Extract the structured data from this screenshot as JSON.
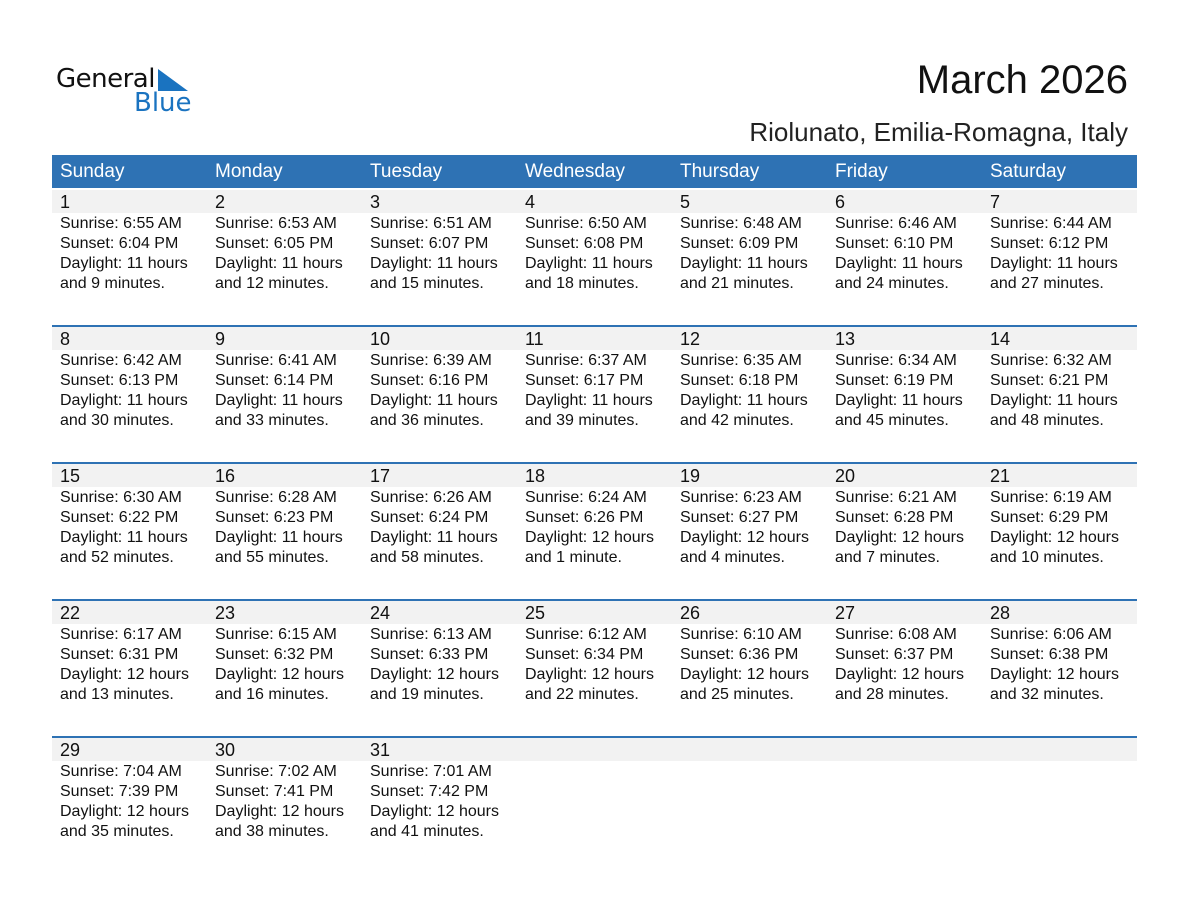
{
  "logo": {
    "word1": "General",
    "word2": "Blue"
  },
  "title": "March 2026",
  "location": "Riolunato, Emilia-Romagna, Italy",
  "colors": {
    "header": "#2e72b4",
    "day_band": "#f2f2f2",
    "logo_blue": "#1a73c0"
  },
  "weekdays": [
    "Sunday",
    "Monday",
    "Tuesday",
    "Wednesday",
    "Thursday",
    "Friday",
    "Saturday"
  ],
  "weeks": [
    [
      {
        "day": "1",
        "sunrise": "Sunrise: 6:55 AM",
        "sunset": "Sunset: 6:04 PM",
        "daylight": "Daylight: 11 hours",
        "minutes": "and 9 minutes."
      },
      {
        "day": "2",
        "sunrise": "Sunrise: 6:53 AM",
        "sunset": "Sunset: 6:05 PM",
        "daylight": "Daylight: 11 hours",
        "minutes": "and 12 minutes."
      },
      {
        "day": "3",
        "sunrise": "Sunrise: 6:51 AM",
        "sunset": "Sunset: 6:07 PM",
        "daylight": "Daylight: 11 hours",
        "minutes": "and 15 minutes."
      },
      {
        "day": "4",
        "sunrise": "Sunrise: 6:50 AM",
        "sunset": "Sunset: 6:08 PM",
        "daylight": "Daylight: 11 hours",
        "minutes": "and 18 minutes."
      },
      {
        "day": "5",
        "sunrise": "Sunrise: 6:48 AM",
        "sunset": "Sunset: 6:09 PM",
        "daylight": "Daylight: 11 hours",
        "minutes": "and 21 minutes."
      },
      {
        "day": "6",
        "sunrise": "Sunrise: 6:46 AM",
        "sunset": "Sunset: 6:10 PM",
        "daylight": "Daylight: 11 hours",
        "minutes": "and 24 minutes."
      },
      {
        "day": "7",
        "sunrise": "Sunrise: 6:44 AM",
        "sunset": "Sunset: 6:12 PM",
        "daylight": "Daylight: 11 hours",
        "minutes": "and 27 minutes."
      }
    ],
    [
      {
        "day": "8",
        "sunrise": "Sunrise: 6:42 AM",
        "sunset": "Sunset: 6:13 PM",
        "daylight": "Daylight: 11 hours",
        "minutes": "and 30 minutes."
      },
      {
        "day": "9",
        "sunrise": "Sunrise: 6:41 AM",
        "sunset": "Sunset: 6:14 PM",
        "daylight": "Daylight: 11 hours",
        "minutes": "and 33 minutes."
      },
      {
        "day": "10",
        "sunrise": "Sunrise: 6:39 AM",
        "sunset": "Sunset: 6:16 PM",
        "daylight": "Daylight: 11 hours",
        "minutes": "and 36 minutes."
      },
      {
        "day": "11",
        "sunrise": "Sunrise: 6:37 AM",
        "sunset": "Sunset: 6:17 PM",
        "daylight": "Daylight: 11 hours",
        "minutes": "and 39 minutes."
      },
      {
        "day": "12",
        "sunrise": "Sunrise: 6:35 AM",
        "sunset": "Sunset: 6:18 PM",
        "daylight": "Daylight: 11 hours",
        "minutes": "and 42 minutes."
      },
      {
        "day": "13",
        "sunrise": "Sunrise: 6:34 AM",
        "sunset": "Sunset: 6:19 PM",
        "daylight": "Daylight: 11 hours",
        "minutes": "and 45 minutes."
      },
      {
        "day": "14",
        "sunrise": "Sunrise: 6:32 AM",
        "sunset": "Sunset: 6:21 PM",
        "daylight": "Daylight: 11 hours",
        "minutes": "and 48 minutes."
      }
    ],
    [
      {
        "day": "15",
        "sunrise": "Sunrise: 6:30 AM",
        "sunset": "Sunset: 6:22 PM",
        "daylight": "Daylight: 11 hours",
        "minutes": "and 52 minutes."
      },
      {
        "day": "16",
        "sunrise": "Sunrise: 6:28 AM",
        "sunset": "Sunset: 6:23 PM",
        "daylight": "Daylight: 11 hours",
        "minutes": "and 55 minutes."
      },
      {
        "day": "17",
        "sunrise": "Sunrise: 6:26 AM",
        "sunset": "Sunset: 6:24 PM",
        "daylight": "Daylight: 11 hours",
        "minutes": "and 58 minutes."
      },
      {
        "day": "18",
        "sunrise": "Sunrise: 6:24 AM",
        "sunset": "Sunset: 6:26 PM",
        "daylight": "Daylight: 12 hours",
        "minutes": "and 1 minute."
      },
      {
        "day": "19",
        "sunrise": "Sunrise: 6:23 AM",
        "sunset": "Sunset: 6:27 PM",
        "daylight": "Daylight: 12 hours",
        "minutes": "and 4 minutes."
      },
      {
        "day": "20",
        "sunrise": "Sunrise: 6:21 AM",
        "sunset": "Sunset: 6:28 PM",
        "daylight": "Daylight: 12 hours",
        "minutes": "and 7 minutes."
      },
      {
        "day": "21",
        "sunrise": "Sunrise: 6:19 AM",
        "sunset": "Sunset: 6:29 PM",
        "daylight": "Daylight: 12 hours",
        "minutes": "and 10 minutes."
      }
    ],
    [
      {
        "day": "22",
        "sunrise": "Sunrise: 6:17 AM",
        "sunset": "Sunset: 6:31 PM",
        "daylight": "Daylight: 12 hours",
        "minutes": "and 13 minutes."
      },
      {
        "day": "23",
        "sunrise": "Sunrise: 6:15 AM",
        "sunset": "Sunset: 6:32 PM",
        "daylight": "Daylight: 12 hours",
        "minutes": "and 16 minutes."
      },
      {
        "day": "24",
        "sunrise": "Sunrise: 6:13 AM",
        "sunset": "Sunset: 6:33 PM",
        "daylight": "Daylight: 12 hours",
        "minutes": "and 19 minutes."
      },
      {
        "day": "25",
        "sunrise": "Sunrise: 6:12 AM",
        "sunset": "Sunset: 6:34 PM",
        "daylight": "Daylight: 12 hours",
        "minutes": "and 22 minutes."
      },
      {
        "day": "26",
        "sunrise": "Sunrise: 6:10 AM",
        "sunset": "Sunset: 6:36 PM",
        "daylight": "Daylight: 12 hours",
        "minutes": "and 25 minutes."
      },
      {
        "day": "27",
        "sunrise": "Sunrise: 6:08 AM",
        "sunset": "Sunset: 6:37 PM",
        "daylight": "Daylight: 12 hours",
        "minutes": "and 28 minutes."
      },
      {
        "day": "28",
        "sunrise": "Sunrise: 6:06 AM",
        "sunset": "Sunset: 6:38 PM",
        "daylight": "Daylight: 12 hours",
        "minutes": "and 32 minutes."
      }
    ],
    [
      {
        "day": "29",
        "sunrise": "Sunrise: 7:04 AM",
        "sunset": "Sunset: 7:39 PM",
        "daylight": "Daylight: 12 hours",
        "minutes": "and 35 minutes."
      },
      {
        "day": "30",
        "sunrise": "Sunrise: 7:02 AM",
        "sunset": "Sunset: 7:41 PM",
        "daylight": "Daylight: 12 hours",
        "minutes": "and 38 minutes."
      },
      {
        "day": "31",
        "sunrise": "Sunrise: 7:01 AM",
        "sunset": "Sunset: 7:42 PM",
        "daylight": "Daylight: 12 hours",
        "minutes": "and 41 minutes."
      },
      null,
      null,
      null,
      null
    ]
  ]
}
